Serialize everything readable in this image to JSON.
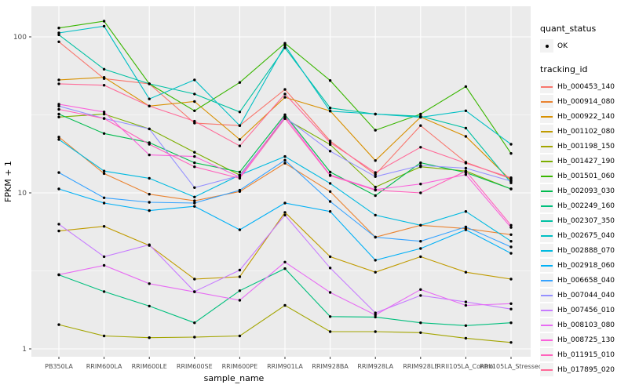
{
  "chart_data": {
    "type": "line",
    "title": "",
    "xlabel": "sample_name",
    "ylabel": "FPKM + 1",
    "y_scale": "log10",
    "ylim": [
      1,
      130
    ],
    "y_ticks": [
      1,
      10,
      100
    ],
    "grid": true,
    "legend_position": "right",
    "point_marker": "black dot on every vertex",
    "categories": [
      "PB350LA",
      "RRIM600LA",
      "RRIM600LE",
      "RRIM600SE",
      "RRIM600PE",
      "RRIM901LA",
      "RRIM928BA",
      "RRIM928LA",
      "RRIM928LE",
      "RRII105LA_Control",
      "RRII105LA_Stressed"
    ],
    "series": [
      {
        "name": "Hb_000453_140",
        "color": "#F8766D",
        "values": [
          93,
          54,
          50,
          28,
          27,
          46,
          21.5,
          13.1,
          27,
          15.7,
          12.3
        ]
      },
      {
        "name": "Hb_000914_080",
        "color": "#EA8331",
        "values": [
          22.8,
          13.3,
          9.8,
          8.9,
          10.2,
          15.5,
          10.2,
          5.2,
          6.2,
          5.9,
          5.4
        ]
      },
      {
        "name": "Hb_000922_140",
        "color": "#D89000",
        "values": [
          53,
          55,
          36,
          38.5,
          22,
          41,
          33.5,
          16.1,
          30.6,
          23,
          12
        ]
      },
      {
        "name": "Hb_001102_080",
        "color": "#C09B00",
        "values": [
          5.7,
          6.1,
          4.6,
          2.8,
          2.9,
          7.5,
          3.9,
          3.1,
          3.9,
          3.1,
          2.8
        ]
      },
      {
        "name": "Hb_001198_150",
        "color": "#A3A500",
        "values": [
          1.43,
          1.21,
          1.18,
          1.19,
          1.21,
          1.9,
          1.29,
          1.29,
          1.27,
          1.17,
          1.1
        ]
      },
      {
        "name": "Hb_001427_190",
        "color": "#7CAE00",
        "values": [
          30.6,
          32,
          25.7,
          18.2,
          13,
          29.9,
          20.4,
          10.9,
          14.7,
          13.8,
          10.6
        ]
      },
      {
        "name": "Hb_001501_060",
        "color": "#39B600",
        "values": [
          114,
          126,
          50,
          33.6,
          51,
          91,
          52.5,
          25.2,
          32,
          48,
          17.9
        ]
      },
      {
        "name": "Hb_002093_030",
        "color": "#00BB4E",
        "values": [
          32,
          24,
          21,
          15.6,
          13.6,
          31.7,
          13.6,
          9.6,
          15.6,
          13.5,
          10.6
        ]
      },
      {
        "name": "Hb_002249_160",
        "color": "#00BF7D",
        "values": [
          2.98,
          2.33,
          1.88,
          1.47,
          2.36,
          3.27,
          1.61,
          1.6,
          1.47,
          1.41,
          1.47
        ]
      },
      {
        "name": "Hb_002307_350",
        "color": "#00C1A3",
        "values": [
          103,
          62,
          50,
          43,
          33,
          85,
          35,
          32,
          31,
          26,
          11.6
        ]
      },
      {
        "name": "Hb_002675_040",
        "color": "#00BFC4",
        "values": [
          106,
          117,
          40,
          53,
          27,
          88,
          33.4,
          32,
          30.5,
          33.6,
          20.5
        ]
      },
      {
        "name": "Hb_002888_070",
        "color": "#00BAE0",
        "values": [
          22,
          13.8,
          12.4,
          9.4,
          13,
          17.1,
          11.5,
          7.2,
          6.2,
          7.6,
          4.9
        ]
      },
      {
        "name": "Hb_002918_060",
        "color": "#00B0F6",
        "values": [
          10.6,
          8.6,
          7.7,
          8.2,
          5.8,
          8.6,
          7.6,
          3.7,
          4.4,
          5.8,
          4.1
        ]
      },
      {
        "name": "Hb_006658_040",
        "color": "#35A2FF",
        "values": [
          13.5,
          9.3,
          8.7,
          8.6,
          10.4,
          16.2,
          8.8,
          5.2,
          4.9,
          6.05,
          4.5
        ]
      },
      {
        "name": "Hb_007044_040",
        "color": "#9590FF",
        "values": [
          36,
          30,
          25.7,
          10.8,
          12.9,
          30.5,
          18.5,
          12.7,
          15,
          14.4,
          11.9
        ]
      },
      {
        "name": "Hb_007456_010",
        "color": "#C77CFF",
        "values": [
          6.3,
          3.9,
          4.65,
          2.33,
          3.2,
          7.2,
          3.3,
          1.7,
          2.2,
          2,
          1.8
        ]
      },
      {
        "name": "Hb_008103_080",
        "color": "#E76BF3",
        "values": [
          2.99,
          3.43,
          2.62,
          2.32,
          2.05,
          3.6,
          2.3,
          1.65,
          2.4,
          1.9,
          1.95
        ]
      },
      {
        "name": "Hb_008725_130",
        "color": "#FA62DB",
        "values": [
          37,
          33,
          17.5,
          17.1,
          12.6,
          31,
          13,
          10.5,
          11.4,
          13.1,
          6
        ]
      },
      {
        "name": "Hb_011915_010",
        "color": "#FF62BC",
        "values": [
          34.3,
          30,
          20.5,
          14.7,
          12.4,
          30,
          12.9,
          10.4,
          10,
          13.8,
          6.2
        ]
      },
      {
        "name": "Hb_017895_020",
        "color": "#FF6A98",
        "values": [
          50,
          49,
          36,
          28.8,
          20,
          43,
          21,
          13.5,
          19.6,
          15.5,
          12.5
        ]
      }
    ]
  },
  "axes": {
    "x_title": "sample_name",
    "y_title": "FPKM + 1",
    "y_tick_labels": [
      "1",
      "10",
      "100"
    ]
  },
  "legend": {
    "quant_title": "quant_status",
    "quant_items": [
      {
        "label": "OK"
      }
    ],
    "tracking_title": "tracking_id"
  },
  "colors": {
    "panel_bg": "#EBEBEB",
    "grid": "#FFFFFF",
    "tick_text": "#4D4D4D",
    "axis_title": "#000000",
    "legend_key_bg": "#F2F2F2",
    "point": "#000000"
  }
}
